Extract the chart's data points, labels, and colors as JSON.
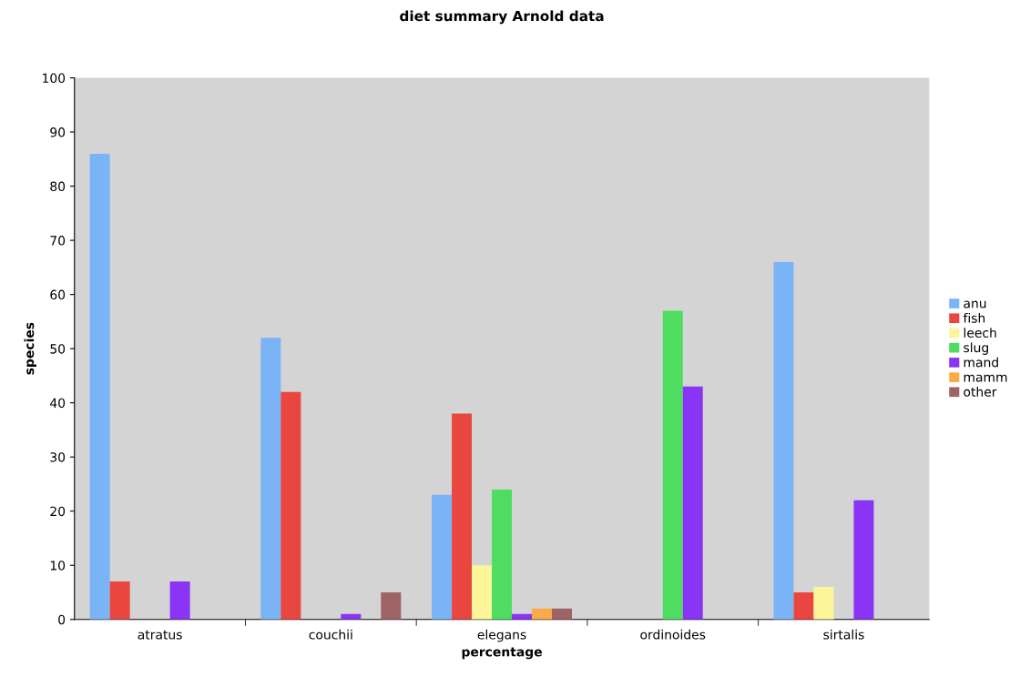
{
  "chart_data": {
    "type": "bar",
    "title": "diet summary Arnold data",
    "xlabel": "percentage",
    "ylabel": "species",
    "categories": [
      "atratus",
      "couchii",
      "elegans",
      "ordinoides",
      "sirtalis"
    ],
    "series": [
      {
        "name": "anu",
        "color": "#7ab4f7",
        "values": [
          86,
          52,
          23,
          0,
          66
        ]
      },
      {
        "name": "fish",
        "color": "#e8463f",
        "values": [
          7,
          42,
          38,
          0,
          5
        ]
      },
      {
        "name": "leech",
        "color": "#fdf59a",
        "values": [
          0,
          0,
          10,
          0,
          6
        ]
      },
      {
        "name": "slug",
        "color": "#4fdd61",
        "values": [
          0,
          0,
          24,
          57,
          0
        ]
      },
      {
        "name": "mand",
        "color": "#8a34f5",
        "values": [
          7,
          1,
          1,
          43,
          22
        ]
      },
      {
        "name": "mamm",
        "color": "#fbaa4a",
        "values": [
          0,
          0,
          2,
          0,
          0
        ]
      },
      {
        "name": "other",
        "color": "#9c6464",
        "values": [
          0,
          5,
          2,
          0,
          0
        ]
      }
    ],
    "ylim": [
      0,
      100
    ],
    "yticks": [
      0,
      10,
      20,
      30,
      40,
      50,
      60,
      70,
      80,
      90,
      100
    ],
    "grid": false,
    "legend": "right"
  }
}
